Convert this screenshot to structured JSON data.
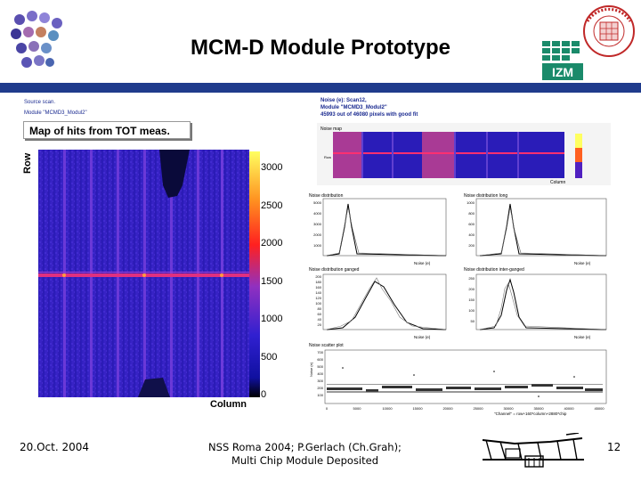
{
  "header": {
    "title": "MCM-D Module Prototype",
    "izm_label": "IZM"
  },
  "left_panel": {
    "source_text": "Source scan.",
    "module_text": "Module \"MCMD3_Modul2\"",
    "map_title": "Map of hits from TOT meas.",
    "row_label": "Row",
    "column_label": "Column",
    "colorbar_ticks": [
      "3000",
      "2500",
      "2000",
      "1500",
      "1000",
      "500",
      "0"
    ]
  },
  "right_panel": {
    "heading_line1": "Noise (e): Scan12,",
    "heading_line2": "Module \"MCMD3_Modul2\"",
    "heading_line3": "45993 out of 46080 pixels with good fit",
    "noise_map_title": "Noise map",
    "noise_map_ylabel": "Row",
    "noise_map_xlabel": "Column",
    "plots": [
      {
        "title": "Noise distribution",
        "xlabel": "Noise (e)",
        "yticks": [
          "5000",
          "4000",
          "3000",
          "2000",
          "1000"
        ],
        "xticks": [
          "200",
          "300",
          "400",
          "500",
          "600",
          "700",
          "800"
        ]
      },
      {
        "title": "Noise distribution long",
        "xlabel": "Noise (e)",
        "yticks": [
          "1000",
          "800",
          "600",
          "400",
          "200"
        ],
        "xticks": [
          "200",
          "300",
          "400",
          "500",
          "600",
          "700",
          "800"
        ]
      },
      {
        "title": "Noise distribution ganged",
        "xlabel": "Noise (e)",
        "yticks": [
          "200",
          "180",
          "160",
          "140",
          "120",
          "100",
          "80",
          "60",
          "40",
          "20"
        ],
        "xticks": [
          "200",
          "300",
          "400",
          "500",
          "600",
          "700",
          "800"
        ]
      },
      {
        "title": "Noise distribution inter-ganged",
        "xlabel": "Noise (e)",
        "yticks": [
          "250",
          "200",
          "150",
          "100",
          "50"
        ],
        "xticks": [
          "200",
          "300",
          "400",
          "500",
          "600",
          "700",
          "800"
        ]
      }
    ],
    "scatter_title": "Noise scatter plot",
    "scatter_ylabel": "Noise (e)",
    "scatter_yticks": [
      "700",
      "600",
      "500",
      "400",
      "300",
      "200",
      "100"
    ],
    "scatter_xticks": [
      "0",
      "5000",
      "10000",
      "15000",
      "20000",
      "25000",
      "30000",
      "35000",
      "40000",
      "45000"
    ],
    "scatter_xlabel": "\"Channel\" = row+160*column+2880*chip"
  },
  "footer": {
    "date": "20.Oct. 2004",
    "line1": "NSS Roma 2004; P.Gerlach (Ch.Grah);",
    "line2": "Multi Chip Module Deposited",
    "page": "12"
  },
  "colors": {
    "bar": "#1f3b8c",
    "heat_low": "#1a1ab0",
    "heat_high": "#ff4040"
  }
}
